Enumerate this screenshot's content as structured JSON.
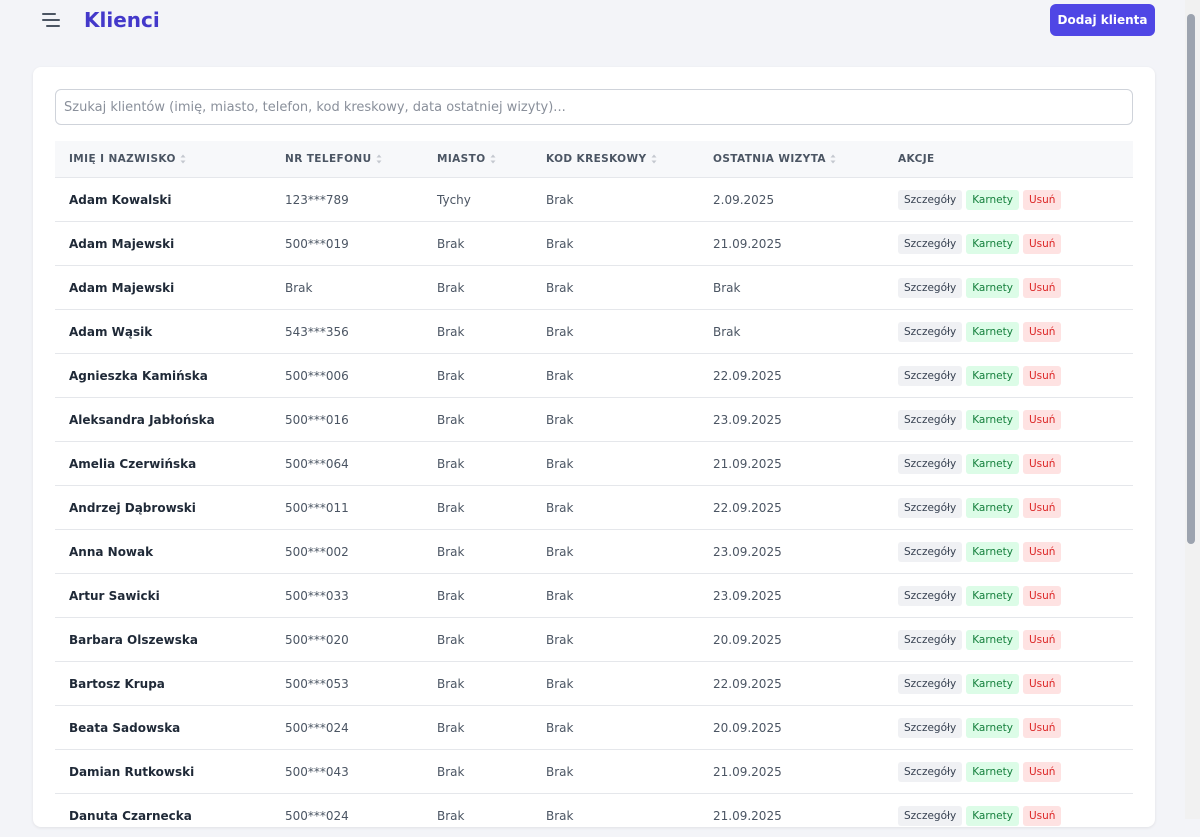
{
  "header": {
    "title": "Klienci",
    "add_button": "Dodaj klienta"
  },
  "search": {
    "placeholder": "Szukaj klientów (imię, miasto, telefon, kod kreskowy, data ostatniej wizyty)..."
  },
  "table": {
    "columns": [
      "IMIĘ I NAZWISKO",
      "NR TELEFONU",
      "MIASTO",
      "KOD KRESKOWY",
      "OSTATNIA WIZYTA",
      "AKCJE"
    ],
    "sortable": [
      true,
      true,
      true,
      true,
      true,
      false
    ],
    "actions": [
      "Szczegóły",
      "Karnety",
      "Usuń"
    ],
    "rows": [
      [
        "Adam Kowalski",
        "123***789",
        "Tychy",
        "Brak",
        "2.09.2025"
      ],
      [
        "Adam Majewski",
        "500***019",
        "Brak",
        "Brak",
        "21.09.2025"
      ],
      [
        "Adam Majewski",
        "Brak",
        "Brak",
        "Brak",
        "Brak"
      ],
      [
        "Adam Wąsik",
        "543***356",
        "Brak",
        "Brak",
        "Brak"
      ],
      [
        "Agnieszka Kamińska",
        "500***006",
        "Brak",
        "Brak",
        "22.09.2025"
      ],
      [
        "Aleksandra Jabłońska",
        "500***016",
        "Brak",
        "Brak",
        "23.09.2025"
      ],
      [
        "Amelia Czerwińska",
        "500***064",
        "Brak",
        "Brak",
        "21.09.2025"
      ],
      [
        "Andrzej Dąbrowski",
        "500***011",
        "Brak",
        "Brak",
        "22.09.2025"
      ],
      [
        "Anna Nowak",
        "500***002",
        "Brak",
        "Brak",
        "23.09.2025"
      ],
      [
        "Artur Sawicki",
        "500***033",
        "Brak",
        "Brak",
        "23.09.2025"
      ],
      [
        "Barbara Olszewska",
        "500***020",
        "Brak",
        "Brak",
        "20.09.2025"
      ],
      [
        "Bartosz Krupa",
        "500***053",
        "Brak",
        "Brak",
        "22.09.2025"
      ],
      [
        "Beata Sadowska",
        "500***024",
        "Brak",
        "Brak",
        "20.09.2025"
      ],
      [
        "Damian Rutkowski",
        "500***043",
        "Brak",
        "Brak",
        "21.09.2025"
      ],
      [
        "Danuta Czarnecka",
        "500***024",
        "Brak",
        "Brak",
        "21.09.2025"
      ]
    ]
  }
}
